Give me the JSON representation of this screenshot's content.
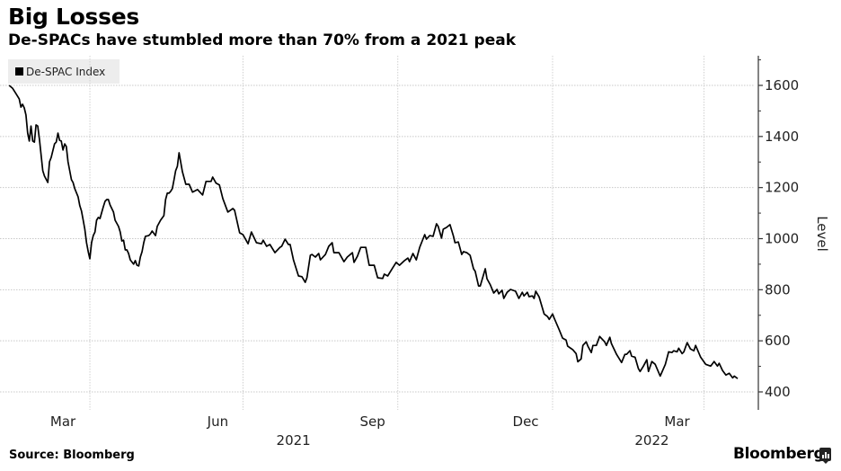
{
  "header": {
    "title": "Big Losses",
    "subtitle": "De-SPACs have stumbled more than 70% from a 2021 peak"
  },
  "footer": {
    "source": "Source: Bloomberg",
    "brand": "Bloomberg"
  },
  "chart_data": {
    "type": "line",
    "title": "Big Losses",
    "subtitle": "De-SPACs have stumbled more than 70% from a 2021 peak",
    "xlabel": "",
    "ylabel": "Level",
    "ylim": [
      350,
      1700
    ],
    "xlim": [
      "2021-02-12",
      "2022-04-10"
    ],
    "y_ticks": [
      400,
      600,
      800,
      1000,
      1200,
      1400,
      1600
    ],
    "y_minor_ticks": [
      500,
      700,
      900,
      1100,
      1300,
      1500,
      1700
    ],
    "x_ticks": [
      {
        "label": "Mar",
        "date": "2021-03-16"
      },
      {
        "label": "Jun",
        "date": "2021-06-16"
      },
      {
        "label": "Sep",
        "date": "2021-09-16"
      },
      {
        "label": "Dec",
        "date": "2021-12-16"
      },
      {
        "label": "Mar",
        "date": "2022-03-16"
      }
    ],
    "x_gridlines": [
      "2021-04-01",
      "2021-07-01",
      "2021-10-01",
      "2022-01-01",
      "2022-04-01"
    ],
    "year_labels": [
      {
        "label": "2021",
        "date": "2021-07-31"
      },
      {
        "label": "2022",
        "date": "2022-03-01"
      }
    ],
    "grid": true,
    "legend": {
      "position": "top-left",
      "entries": [
        "De-SPAC Index"
      ]
    },
    "y_axis_side": "right",
    "series": [
      {
        "name": "De-SPAC Index",
        "color": "#000000",
        "points": [
          [
            "2021-02-12",
            1600
          ],
          [
            "2021-02-14",
            1589
          ],
          [
            "2021-02-16",
            1568
          ],
          [
            "2021-02-18",
            1547
          ],
          [
            "2021-02-19",
            1515
          ],
          [
            "2021-02-20",
            1526
          ],
          [
            "2021-02-21",
            1512
          ],
          [
            "2021-02-22",
            1484
          ],
          [
            "2021-02-23",
            1413
          ],
          [
            "2021-02-24",
            1382
          ],
          [
            "2021-02-25",
            1441
          ],
          [
            "2021-02-26",
            1382
          ],
          [
            "2021-02-27",
            1378
          ],
          [
            "2021-02-28",
            1445
          ],
          [
            "2021-03-01",
            1441
          ],
          [
            "2021-03-02",
            1389
          ],
          [
            "2021-03-04",
            1266
          ],
          [
            "2021-03-05",
            1245
          ],
          [
            "2021-03-07",
            1220
          ],
          [
            "2021-03-08",
            1301
          ],
          [
            "2021-03-09",
            1318
          ],
          [
            "2021-03-11",
            1371
          ],
          [
            "2021-03-12",
            1378
          ],
          [
            "2021-03-13",
            1413
          ],
          [
            "2021-03-14",
            1385
          ],
          [
            "2021-03-15",
            1382
          ],
          [
            "2021-03-16",
            1347
          ],
          [
            "2021-03-17",
            1371
          ],
          [
            "2021-03-18",
            1361
          ],
          [
            "2021-03-19",
            1301
          ],
          [
            "2021-03-21",
            1231
          ],
          [
            "2021-03-22",
            1220
          ],
          [
            "2021-03-23",
            1196
          ],
          [
            "2021-03-25",
            1164
          ],
          [
            "2021-03-26",
            1129
          ],
          [
            "2021-03-27",
            1108
          ],
          [
            "2021-03-28",
            1072
          ],
          [
            "2021-03-29",
            1037
          ],
          [
            "2021-03-30",
            984
          ],
          [
            "2021-03-31",
            949
          ],
          [
            "2021-04-01",
            921
          ],
          [
            "2021-04-02",
            984
          ],
          [
            "2021-04-03",
            1012
          ],
          [
            "2021-04-04",
            1026
          ],
          [
            "2021-04-05",
            1072
          ],
          [
            "2021-04-06",
            1083
          ],
          [
            "2021-04-07",
            1079
          ],
          [
            "2021-04-09",
            1125
          ],
          [
            "2021-04-10",
            1146
          ],
          [
            "2021-04-11",
            1153
          ],
          [
            "2021-04-12",
            1153
          ],
          [
            "2021-04-13",
            1132
          ],
          [
            "2021-04-15",
            1104
          ],
          [
            "2021-04-16",
            1072
          ],
          [
            "2021-04-18",
            1048
          ],
          [
            "2021-04-19",
            1026
          ],
          [
            "2021-04-20",
            991
          ],
          [
            "2021-04-21",
            994
          ],
          [
            "2021-04-22",
            956
          ],
          [
            "2021-04-23",
            956
          ],
          [
            "2021-04-24",
            942
          ],
          [
            "2021-04-25",
            917
          ],
          [
            "2021-04-27",
            900
          ],
          [
            "2021-04-28",
            914
          ],
          [
            "2021-04-29",
            896
          ],
          [
            "2021-04-30",
            893
          ],
          [
            "2021-05-01",
            928
          ],
          [
            "2021-05-02",
            949
          ],
          [
            "2021-05-03",
            984
          ],
          [
            "2021-05-04",
            1009
          ],
          [
            "2021-05-06",
            1012
          ],
          [
            "2021-05-07",
            1019
          ],
          [
            "2021-05-08",
            1030
          ],
          [
            "2021-05-10",
            1012
          ],
          [
            "2021-05-11",
            1048
          ],
          [
            "2021-05-13",
            1072
          ],
          [
            "2021-05-15",
            1090
          ],
          [
            "2021-05-16",
            1153
          ],
          [
            "2021-05-17",
            1178
          ],
          [
            "2021-05-18",
            1178
          ],
          [
            "2021-05-19",
            1185
          ],
          [
            "2021-05-20",
            1196
          ],
          [
            "2021-05-21",
            1231
          ],
          [
            "2021-05-22",
            1266
          ],
          [
            "2021-05-23",
            1283
          ],
          [
            "2021-05-24",
            1336
          ],
          [
            "2021-05-26",
            1262
          ],
          [
            "2021-05-28",
            1213
          ],
          [
            "2021-05-30",
            1213
          ],
          [
            "2021-06-01",
            1182
          ],
          [
            "2021-06-04",
            1192
          ],
          [
            "2021-06-07",
            1171
          ],
          [
            "2021-06-09",
            1224
          ],
          [
            "2021-06-12",
            1224
          ],
          [
            "2021-06-13",
            1241
          ],
          [
            "2021-06-15",
            1217
          ],
          [
            "2021-06-17",
            1210
          ],
          [
            "2021-06-19",
            1157
          ],
          [
            "2021-06-22",
            1104
          ],
          [
            "2021-06-25",
            1118
          ],
          [
            "2021-06-26",
            1111
          ],
          [
            "2021-06-29",
            1023
          ],
          [
            "2021-07-01",
            1016
          ],
          [
            "2021-07-04",
            980
          ],
          [
            "2021-07-06",
            1026
          ],
          [
            "2021-07-09",
            984
          ],
          [
            "2021-07-12",
            980
          ],
          [
            "2021-07-13",
            994
          ],
          [
            "2021-07-15",
            970
          ],
          [
            "2021-07-17",
            977
          ],
          [
            "2021-07-20",
            945
          ],
          [
            "2021-07-23",
            966
          ],
          [
            "2021-07-24",
            970
          ],
          [
            "2021-07-26",
            998
          ],
          [
            "2021-07-28",
            977
          ],
          [
            "2021-07-29",
            977
          ],
          [
            "2021-07-31",
            917
          ],
          [
            "2021-08-03",
            854
          ],
          [
            "2021-08-05",
            851
          ],
          [
            "2021-08-07",
            829
          ],
          [
            "2021-08-08",
            847
          ],
          [
            "2021-08-10",
            935
          ],
          [
            "2021-08-11",
            938
          ],
          [
            "2021-08-13",
            928
          ],
          [
            "2021-08-15",
            942
          ],
          [
            "2021-08-16",
            917
          ],
          [
            "2021-08-19",
            938
          ],
          [
            "2021-08-21",
            970
          ],
          [
            "2021-08-23",
            984
          ],
          [
            "2021-08-24",
            945
          ],
          [
            "2021-08-27",
            945
          ],
          [
            "2021-08-30",
            910
          ],
          [
            "2021-09-01",
            928
          ],
          [
            "2021-09-04",
            945
          ],
          [
            "2021-09-05",
            907
          ],
          [
            "2021-09-07",
            931
          ],
          [
            "2021-09-09",
            966
          ],
          [
            "2021-09-12",
            966
          ],
          [
            "2021-09-14",
            896
          ],
          [
            "2021-09-17",
            896
          ],
          [
            "2021-09-19",
            847
          ],
          [
            "2021-09-22",
            844
          ],
          [
            "2021-09-23",
            861
          ],
          [
            "2021-09-25",
            854
          ],
          [
            "2021-09-28",
            886
          ],
          [
            "2021-09-30",
            907
          ],
          [
            "2021-10-02",
            896
          ],
          [
            "2021-10-05",
            914
          ],
          [
            "2021-10-07",
            924
          ],
          [
            "2021-10-08",
            910
          ],
          [
            "2021-10-10",
            942
          ],
          [
            "2021-10-12",
            917
          ],
          [
            "2021-10-14",
            966
          ],
          [
            "2021-10-17",
            1016
          ],
          [
            "2021-10-18",
            998
          ],
          [
            "2021-10-20",
            1012
          ],
          [
            "2021-10-22",
            1009
          ],
          [
            "2021-10-24",
            1058
          ],
          [
            "2021-10-25",
            1048
          ],
          [
            "2021-10-27",
            1002
          ],
          [
            "2021-10-28",
            1037
          ],
          [
            "2021-10-30",
            1044
          ],
          [
            "2021-11-01",
            1055
          ],
          [
            "2021-11-03",
            1012
          ],
          [
            "2021-11-04",
            984
          ],
          [
            "2021-11-06",
            987
          ],
          [
            "2021-11-08",
            938
          ],
          [
            "2021-11-09",
            949
          ],
          [
            "2021-11-11",
            945
          ],
          [
            "2021-11-13",
            935
          ],
          [
            "2021-11-15",
            882
          ],
          [
            "2021-11-16",
            872
          ],
          [
            "2021-11-18",
            815
          ],
          [
            "2021-11-19",
            815
          ],
          [
            "2021-11-22",
            882
          ],
          [
            "2021-11-23",
            843
          ],
          [
            "2021-11-25",
            819
          ],
          [
            "2021-11-27",
            787
          ],
          [
            "2021-11-29",
            801
          ],
          [
            "2021-11-30",
            784
          ],
          [
            "2021-12-02",
            798
          ],
          [
            "2021-12-03",
            766
          ],
          [
            "2021-12-05",
            790
          ],
          [
            "2021-12-07",
            801
          ],
          [
            "2021-12-10",
            794
          ],
          [
            "2021-12-12",
            766
          ],
          [
            "2021-12-14",
            790
          ],
          [
            "2021-12-15",
            776
          ],
          [
            "2021-12-17",
            790
          ],
          [
            "2021-12-18",
            773
          ],
          [
            "2021-12-20",
            776
          ],
          [
            "2021-12-21",
            766
          ],
          [
            "2021-12-22",
            794
          ],
          [
            "2021-12-24",
            772
          ],
          [
            "2021-12-27",
            705
          ],
          [
            "2021-12-29",
            695
          ],
          [
            "2021-12-30",
            684
          ],
          [
            "2022-01-01",
            705
          ],
          [
            "2022-01-02",
            688
          ],
          [
            "2022-01-05",
            642
          ],
          [
            "2022-01-07",
            610
          ],
          [
            "2022-01-09",
            603
          ],
          [
            "2022-01-10",
            579
          ],
          [
            "2022-01-13",
            565
          ],
          [
            "2022-01-15",
            550
          ],
          [
            "2022-01-16",
            518
          ],
          [
            "2022-01-18",
            529
          ],
          [
            "2022-01-19",
            582
          ],
          [
            "2022-01-21",
            596
          ],
          [
            "2022-01-22",
            579
          ],
          [
            "2022-01-24",
            554
          ],
          [
            "2022-01-25",
            582
          ],
          [
            "2022-01-27",
            582
          ],
          [
            "2022-01-29",
            617
          ],
          [
            "2022-02-01",
            596
          ],
          [
            "2022-02-02",
            582
          ],
          [
            "2022-02-04",
            614
          ],
          [
            "2022-02-05",
            589
          ],
          [
            "2022-02-08",
            547
          ],
          [
            "2022-02-11",
            515
          ],
          [
            "2022-02-13",
            547
          ],
          [
            "2022-02-14",
            547
          ],
          [
            "2022-02-16",
            561
          ],
          [
            "2022-02-17",
            540
          ],
          [
            "2022-02-19",
            536
          ],
          [
            "2022-02-21",
            491
          ],
          [
            "2022-02-22",
            480
          ],
          [
            "2022-02-24",
            501
          ],
          [
            "2022-02-26",
            526
          ],
          [
            "2022-02-27",
            480
          ],
          [
            "2022-03-01",
            519
          ],
          [
            "2022-03-03",
            508
          ],
          [
            "2022-03-06",
            462
          ],
          [
            "2022-03-09",
            508
          ],
          [
            "2022-03-11",
            557
          ],
          [
            "2022-03-13",
            554
          ],
          [
            "2022-03-14",
            561
          ],
          [
            "2022-03-16",
            557
          ],
          [
            "2022-03-17",
            571
          ],
          [
            "2022-03-19",
            550
          ],
          [
            "2022-03-20",
            557
          ],
          [
            "2022-03-22",
            593
          ],
          [
            "2022-03-24",
            568
          ],
          [
            "2022-03-26",
            561
          ],
          [
            "2022-03-27",
            582
          ],
          [
            "2022-03-30",
            536
          ],
          [
            "2022-04-02",
            508
          ],
          [
            "2022-04-05",
            501
          ],
          [
            "2022-04-07",
            519
          ],
          [
            "2022-04-09",
            501
          ],
          [
            "2022-04-10",
            512
          ],
          [
            "2022-04-12",
            484
          ],
          [
            "2022-04-14",
            466
          ],
          [
            "2022-04-16",
            473
          ],
          [
            "2022-04-18",
            455
          ],
          [
            "2022-04-19",
            462
          ],
          [
            "2022-04-21",
            452
          ]
        ]
      }
    ]
  }
}
